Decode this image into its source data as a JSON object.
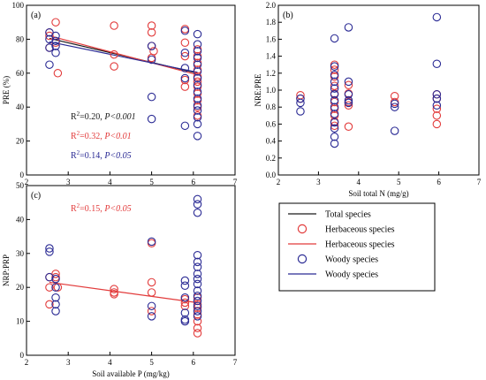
{
  "colors": {
    "herbaceous": "#e23b3b",
    "woody": "#2a2a94",
    "total": "#1a1a1a",
    "axis": "#000000",
    "background": "#ffffff"
  },
  "chart_data": [
    {
      "id": "a",
      "type": "scatter",
      "panel_label": "(a)",
      "xlabel": "",
      "ylabel": "PRE (%)",
      "xlim": [
        2,
        7
      ],
      "ylim": [
        0,
        100
      ],
      "xticks": [
        "2",
        "3",
        "4",
        "5",
        "6",
        "7"
      ],
      "yticks": [
        "0",
        "20",
        "40",
        "60",
        "80",
        "100"
      ],
      "series": [
        {
          "group": "herbaceous",
          "x": [
            2.55,
            2.55,
            2.55,
            2.7,
            2.7,
            2.75,
            4.1,
            4.1,
            4.1,
            5.0,
            5.0,
            5.0,
            5.0,
            5.05,
            5.8,
            5.8,
            5.8,
            5.8,
            5.8,
            6.1,
            6.1,
            6.1,
            6.1,
            6.1,
            6.1,
            6.1,
            6.1,
            6.1,
            6.1,
            6.1
          ],
          "y": [
            84,
            82,
            75,
            90,
            78,
            60,
            88,
            71,
            64,
            88,
            84,
            76,
            69,
            73,
            86,
            78,
            70,
            56,
            52,
            74,
            70,
            66,
            62,
            58,
            55,
            52,
            48,
            44,
            40,
            35
          ]
        },
        {
          "group": "woody",
          "x": [
            2.55,
            2.55,
            2.55,
            2.55,
            2.7,
            2.7,
            2.7,
            2.7,
            5.0,
            5.0,
            5.0,
            5.0,
            5.8,
            5.8,
            5.8,
            5.8,
            5.8,
            6.1,
            6.1,
            6.1,
            6.1,
            6.1,
            6.1,
            6.1,
            6.1,
            6.1,
            6.1,
            6.1,
            6.1,
            6.1,
            6.1,
            6.1
          ],
          "y": [
            84,
            80,
            75,
            65,
            82,
            79,
            76,
            72,
            76,
            68,
            46,
            33,
            85,
            72,
            63,
            57,
            29,
            83,
            77,
            73,
            69,
            65,
            61,
            57,
            53,
            49,
            45,
            41,
            38,
            34,
            30,
            23
          ]
        }
      ],
      "fits": [
        {
          "group": "total",
          "x": [
            2.55,
            6.1
          ],
          "y": [
            80.5,
            60
          ]
        },
        {
          "group": "herbaceous",
          "x": [
            2.55,
            6.1
          ],
          "y": [
            82,
            59
          ]
        },
        {
          "group": "woody",
          "x": [
            2.55,
            6.1
          ],
          "y": [
            78.5,
            60.5
          ]
        }
      ],
      "annotations": [
        {
          "group": "total",
          "r2": "0.20",
          "p": "P<0.001"
        },
        {
          "group": "herbaceous",
          "r2": "0.32",
          "p": "P<0.01"
        },
        {
          "group": "woody",
          "r2": "0.14",
          "p": "P<0.05"
        }
      ]
    },
    {
      "id": "b",
      "type": "scatter",
      "panel_label": "(b)",
      "xlabel": "Soil total N (mg/g)",
      "ylabel": "NRE:PRE",
      "xlim": [
        2,
        7
      ],
      "ylim": [
        0,
        2
      ],
      "xticks": [
        "2",
        "3",
        "4",
        "5",
        "6",
        "7"
      ],
      "yticks": [
        "0.0",
        "0.2",
        "0.4",
        "0.6",
        "0.8",
        "1.0",
        "1.2",
        "1.4",
        "1.6",
        "1.8",
        "2.0"
      ],
      "series": [
        {
          "group": "herbaceous",
          "x": [
            2.55,
            2.55,
            3.4,
            3.4,
            3.4,
            3.4,
            3.4,
            3.4,
            3.4,
            3.4,
            3.4,
            3.4,
            3.75,
            3.75,
            3.75,
            3.75,
            3.75,
            4.9,
            4.9,
            5.95,
            5.95,
            5.95,
            5.95,
            5.95
          ],
          "y": [
            0.94,
            0.9,
            1.3,
            1.24,
            1.16,
            1.05,
            0.96,
            0.86,
            0.78,
            0.7,
            0.63,
            0.58,
            1.06,
            0.96,
            0.86,
            0.82,
            0.57,
            0.93,
            0.86,
            0.95,
            0.9,
            0.78,
            0.7,
            0.6
          ]
        },
        {
          "group": "woody",
          "x": [
            2.55,
            2.55,
            2.55,
            3.4,
            3.4,
            3.4,
            3.4,
            3.4,
            3.4,
            3.4,
            3.4,
            3.4,
            3.4,
            3.4,
            3.4,
            3.4,
            3.75,
            3.75,
            3.75,
            3.75,
            3.75,
            4.9,
            4.9,
            4.9,
            5.95,
            5.95,
            5.95,
            5.95,
            5.95
          ],
          "y": [
            0.9,
            0.85,
            0.75,
            1.61,
            1.28,
            1.18,
            1.1,
            1.02,
            0.95,
            0.88,
            0.8,
            0.72,
            0.62,
            0.55,
            0.45,
            0.37,
            1.74,
            1.1,
            0.95,
            0.88,
            0.85,
            0.84,
            0.8,
            0.52,
            1.86,
            1.31,
            0.95,
            0.9,
            0.82
          ]
        }
      ],
      "fits": [],
      "annotations": []
    },
    {
      "id": "c",
      "type": "scatter",
      "panel_label": "(c)",
      "xlabel": "Soil available P (mg/kg)",
      "ylabel": "NRP:PRP",
      "xlim": [
        2,
        7
      ],
      "ylim": [
        0,
        50
      ],
      "xticks": [
        "2",
        "3",
        "4",
        "5",
        "6",
        "7"
      ],
      "yticks": [
        "0",
        "10",
        "20",
        "30",
        "40",
        "50"
      ],
      "series": [
        {
          "group": "herbaceous",
          "x": [
            2.55,
            2.55,
            2.55,
            2.7,
            2.7,
            2.75,
            4.1,
            4.1,
            4.1,
            5.0,
            5.0,
            5.0,
            5.0,
            5.8,
            5.8,
            5.8,
            6.1,
            6.1,
            6.1,
            6.1,
            6.1,
            6.1,
            6.1
          ],
          "y": [
            23,
            20,
            15,
            24,
            23,
            20,
            19.5,
            18.5,
            18,
            33,
            21.5,
            18.5,
            13,
            16.5,
            15.5,
            14.5,
            17,
            15,
            14,
            12,
            10,
            8,
            6.5
          ]
        },
        {
          "group": "woody",
          "x": [
            2.55,
            2.55,
            2.55,
            2.7,
            2.7,
            2.7,
            2.7,
            2.7,
            5.0,
            5.0,
            5.0,
            5.8,
            5.8,
            5.8,
            5.8,
            5.8,
            5.8,
            6.1,
            6.1,
            6.1,
            6.1,
            6.1,
            6.1,
            6.1,
            6.1,
            6.1,
            6.1,
            6.1,
            6.1,
            6.1,
            6.1,
            6.1
          ],
          "y": [
            31.5,
            30.5,
            23,
            22.5,
            20,
            17,
            15,
            13,
            33.5,
            14.5,
            11.5,
            22,
            20.5,
            17,
            12.5,
            10.5,
            10,
            46,
            44.5,
            42,
            29.5,
            27.5,
            26,
            24,
            22.5,
            21,
            19,
            17.5,
            16,
            14.5,
            13,
            11.5
          ]
        }
      ],
      "fits": [
        {
          "group": "herbaceous",
          "x": [
            2.55,
            6.1
          ],
          "y": [
            21.5,
            15.5
          ]
        }
      ],
      "annotations": [
        {
          "group": "herbaceous",
          "r2": "0.15",
          "p": "P<0.05"
        }
      ]
    }
  ],
  "legend": {
    "items": [
      {
        "label": "Total species",
        "kind": "line",
        "group": "total"
      },
      {
        "label": "Herbaceous species",
        "kind": "marker",
        "group": "herbaceous"
      },
      {
        "label": "Herbaceous species",
        "kind": "line",
        "group": "herbaceous"
      },
      {
        "label": "Woody species",
        "kind": "marker",
        "group": "woody"
      },
      {
        "label": "Woody species",
        "kind": "line",
        "group": "woody"
      }
    ]
  }
}
